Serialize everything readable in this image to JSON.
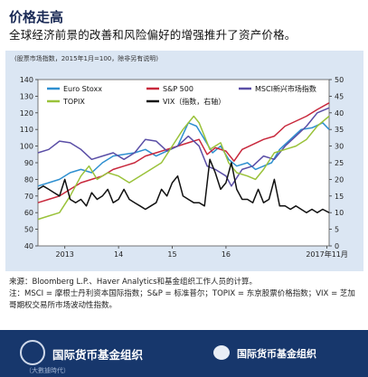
{
  "header": {
    "title": "价格走高",
    "subtitle": "全球经济前景的改善和风险偏好的增强推升了资产价格。"
  },
  "chart_data": {
    "type": "line",
    "note": "(股票市场指数，2015年1月=100，除非另有说明)",
    "y_left": {
      "min": 40,
      "max": 140,
      "ticks": [
        40,
        50,
        60,
        70,
        80,
        90,
        100,
        110,
        120,
        130,
        140
      ]
    },
    "y_right": {
      "min": 0,
      "max": 50,
      "ticks": [
        0,
        5,
        10,
        15,
        20,
        25,
        30,
        35,
        40,
        45,
        50
      ]
    },
    "x_range": [
      2012.5,
      2017.92
    ],
    "x_ticks": [
      {
        "x": 2013.0,
        "label": "2013"
      },
      {
        "x": 2014.0,
        "label": "14"
      },
      {
        "x": 2015.0,
        "label": "15"
      },
      {
        "x": 2016.0,
        "label": "16"
      },
      {
        "x": 2017.88,
        "label": "2017年11月"
      }
    ],
    "series": [
      {
        "name": "Euro Stoxx",
        "color": "#2e8fd0",
        "axis": "left",
        "x": [
          2012.5,
          2012.7,
          2012.9,
          2013.1,
          2013.3,
          2013.5,
          2013.7,
          2013.9,
          2014.1,
          2014.3,
          2014.5,
          2014.7,
          2014.9,
          2015.1,
          2015.3,
          2015.45,
          2015.6,
          2015.75,
          2015.9,
          2016.05,
          2016.2,
          2016.4,
          2016.55,
          2016.7,
          2016.85,
          2017.0,
          2017.2,
          2017.4,
          2017.6,
          2017.8,
          2017.92
        ],
        "y": [
          76,
          78,
          80,
          84,
          86,
          84,
          90,
          94,
          95,
          96,
          98,
          94,
          97,
          100,
          114,
          112,
          104,
          96,
          100,
          92,
          88,
          90,
          86,
          88,
          90,
          98,
          104,
          110,
          111,
          114,
          110
        ]
      },
      {
        "name": "S&P 500",
        "color": "#c8283c",
        "axis": "left",
        "x": [
          2012.5,
          2012.7,
          2012.9,
          2013.1,
          2013.3,
          2013.5,
          2013.7,
          2013.9,
          2014.1,
          2014.3,
          2014.5,
          2014.7,
          2014.9,
          2015.1,
          2015.3,
          2015.5,
          2015.65,
          2015.8,
          2016.0,
          2016.15,
          2016.3,
          2016.5,
          2016.7,
          2016.9,
          2017.1,
          2017.3,
          2017.5,
          2017.7,
          2017.92
        ],
        "y": [
          66,
          68,
          70,
          74,
          78,
          80,
          82,
          86,
          88,
          90,
          94,
          96,
          98,
          100,
          102,
          104,
          95,
          99,
          97,
          91,
          98,
          101,
          104,
          106,
          112,
          115,
          118,
          122,
          126
        ]
      },
      {
        "name": "MSCI新兴市场指数",
        "color": "#5a4ea6",
        "axis": "left",
        "x": [
          2012.5,
          2012.7,
          2012.9,
          2013.1,
          2013.3,
          2013.5,
          2013.7,
          2013.9,
          2014.1,
          2014.3,
          2014.5,
          2014.7,
          2014.9,
          2015.1,
          2015.3,
          2015.5,
          2015.65,
          2015.8,
          2016.0,
          2016.1,
          2016.3,
          2016.5,
          2016.7,
          2016.9,
          2017.1,
          2017.3,
          2017.5,
          2017.7,
          2017.92
        ],
        "y": [
          96,
          98,
          103,
          102,
          98,
          92,
          94,
          96,
          92,
          96,
          104,
          103,
          97,
          100,
          106,
          100,
          88,
          86,
          82,
          76,
          86,
          88,
          94,
          92,
          100,
          106,
          112,
          120,
          123
        ]
      },
      {
        "name": "TOPIX",
        "color": "#9ac23a",
        "axis": "left",
        "x": [
          2012.5,
          2012.7,
          2012.9,
          2013.1,
          2013.3,
          2013.45,
          2013.6,
          2013.8,
          2014.0,
          2014.2,
          2014.4,
          2014.6,
          2014.8,
          2015.0,
          2015.2,
          2015.4,
          2015.5,
          2015.7,
          2015.9,
          2016.05,
          2016.2,
          2016.4,
          2016.55,
          2016.7,
          2016.9,
          2017.1,
          2017.3,
          2017.5,
          2017.7,
          2017.92
        ],
        "y": [
          56,
          58,
          60,
          70,
          82,
          88,
          80,
          84,
          82,
          78,
          82,
          86,
          90,
          100,
          110,
          118,
          114,
          98,
          102,
          90,
          84,
          82,
          80,
          86,
          96,
          98,
          100,
          104,
          112,
          118
        ]
      },
      {
        "name": "VIX（指数，右轴）",
        "color": "#111111",
        "axis": "right",
        "x": [
          2012.5,
          2012.6,
          2012.7,
          2012.8,
          2012.9,
          2013.0,
          2013.1,
          2013.2,
          2013.3,
          2013.4,
          2013.5,
          2013.6,
          2013.7,
          2013.8,
          2013.9,
          2014.0,
          2014.1,
          2014.2,
          2014.3,
          2014.4,
          2014.5,
          2014.6,
          2014.7,
          2014.8,
          2014.9,
          2015.0,
          2015.1,
          2015.2,
          2015.3,
          2015.4,
          2015.5,
          2015.6,
          2015.7,
          2015.8,
          2015.9,
          2016.0,
          2016.1,
          2016.2,
          2016.3,
          2016.4,
          2016.5,
          2016.6,
          2016.7,
          2016.8,
          2016.9,
          2017.0,
          2017.1,
          2017.2,
          2017.3,
          2017.4,
          2017.5,
          2017.6,
          2017.7,
          2017.8,
          2017.92
        ],
        "y": [
          17,
          18,
          17,
          16,
          15,
          20,
          14,
          13,
          14,
          12,
          16,
          14,
          15,
          17,
          13,
          14,
          17,
          14,
          13,
          12,
          11,
          12,
          13,
          17,
          15,
          19,
          21,
          15,
          14,
          13,
          13,
          12,
          26,
          22,
          17,
          19,
          25,
          17,
          14,
          14,
          13,
          17,
          13,
          14,
          20,
          12,
          12,
          11,
          12,
          11,
          10,
          11,
          10,
          11,
          10
        ]
      }
    ]
  },
  "legend": {
    "items": [
      {
        "label": "Euro Stoxx",
        "color": "#2e8fd0"
      },
      {
        "label": "S&P 500",
        "color": "#c8283c"
      },
      {
        "label": "MSCI新兴市场指数",
        "color": "#5a4ea6"
      },
      {
        "label": "TOPIX",
        "color": "#9ac23a"
      },
      {
        "label": "VIX（指数，右轴）",
        "color": "#111111"
      }
    ]
  },
  "footnotes": {
    "source": "来源：Bloomberg L.P.、Haver Analytics和基金组织工作人员的计算。",
    "note": "注：MSCI = 摩根士丹利资本国际指数；S&P = 标准普尔；TOPIX = 东京股票价格指数；VIX = 芝加哥期权交易所市场波动性指数。"
  },
  "footer": {
    "org_name": "国际货币基金组织",
    "watermark_text": "国际货币基金组织",
    "small_mark": "（大數據時代）"
  }
}
